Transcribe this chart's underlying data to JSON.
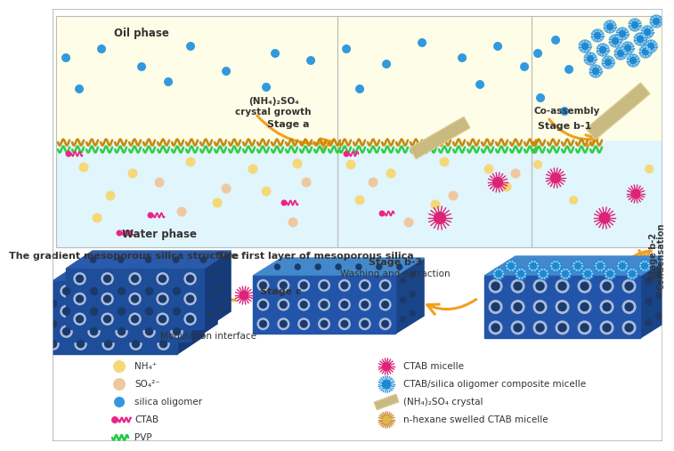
{
  "bg_color": "#ffffff",
  "oil_phase_color": "#fefee8",
  "water_phase_color": "#e0f5fc",
  "arrow_color": "#f0a020",
  "blue_dot_color": "#3399dd",
  "nh4_color": "#f5d878",
  "so4_color": "#f0c8a0",
  "ctab_color": "#ee2288",
  "pvp_color": "#22cc44",
  "ctab_micelle_color": "#dd2277",
  "crystal_color": "#c8ba80",
  "block_front": "#2255aa",
  "block_right": "#1a4488",
  "block_top": "#3377cc",
  "stage_a_label": "(NH₄)₂SO₄\ncrystal growth",
  "stage_a": "Stage a",
  "stage_b1_label": "Co-assembly",
  "stage_b1": "Stage b-1",
  "stage_b2": "Stage b-2",
  "stage_b2_label": "Condensation",
  "stage_b3": "Stage b-3",
  "stage_b3_label": "Washing and extraction",
  "stage_c": "Stage c",
  "stage_c_label": "Modulation interface",
  "oil_phase_text": "Oil phase",
  "water_phase_text": "Water phase",
  "gradient_text": "The gradient mesoporous silica structure",
  "first_layer_text": "The first layer of mesoporous silica",
  "legend_left": [
    "NH₄⁺",
    "SO₄²⁻",
    "silica oligomer",
    "CTAB",
    "PVP"
  ],
  "legend_right": [
    "CTAB micelle",
    "CTAB/silica oligomer composite micelle",
    "(NH₄)₂SO₄ crystal",
    "n-hexane swelled CTAB micelle"
  ]
}
